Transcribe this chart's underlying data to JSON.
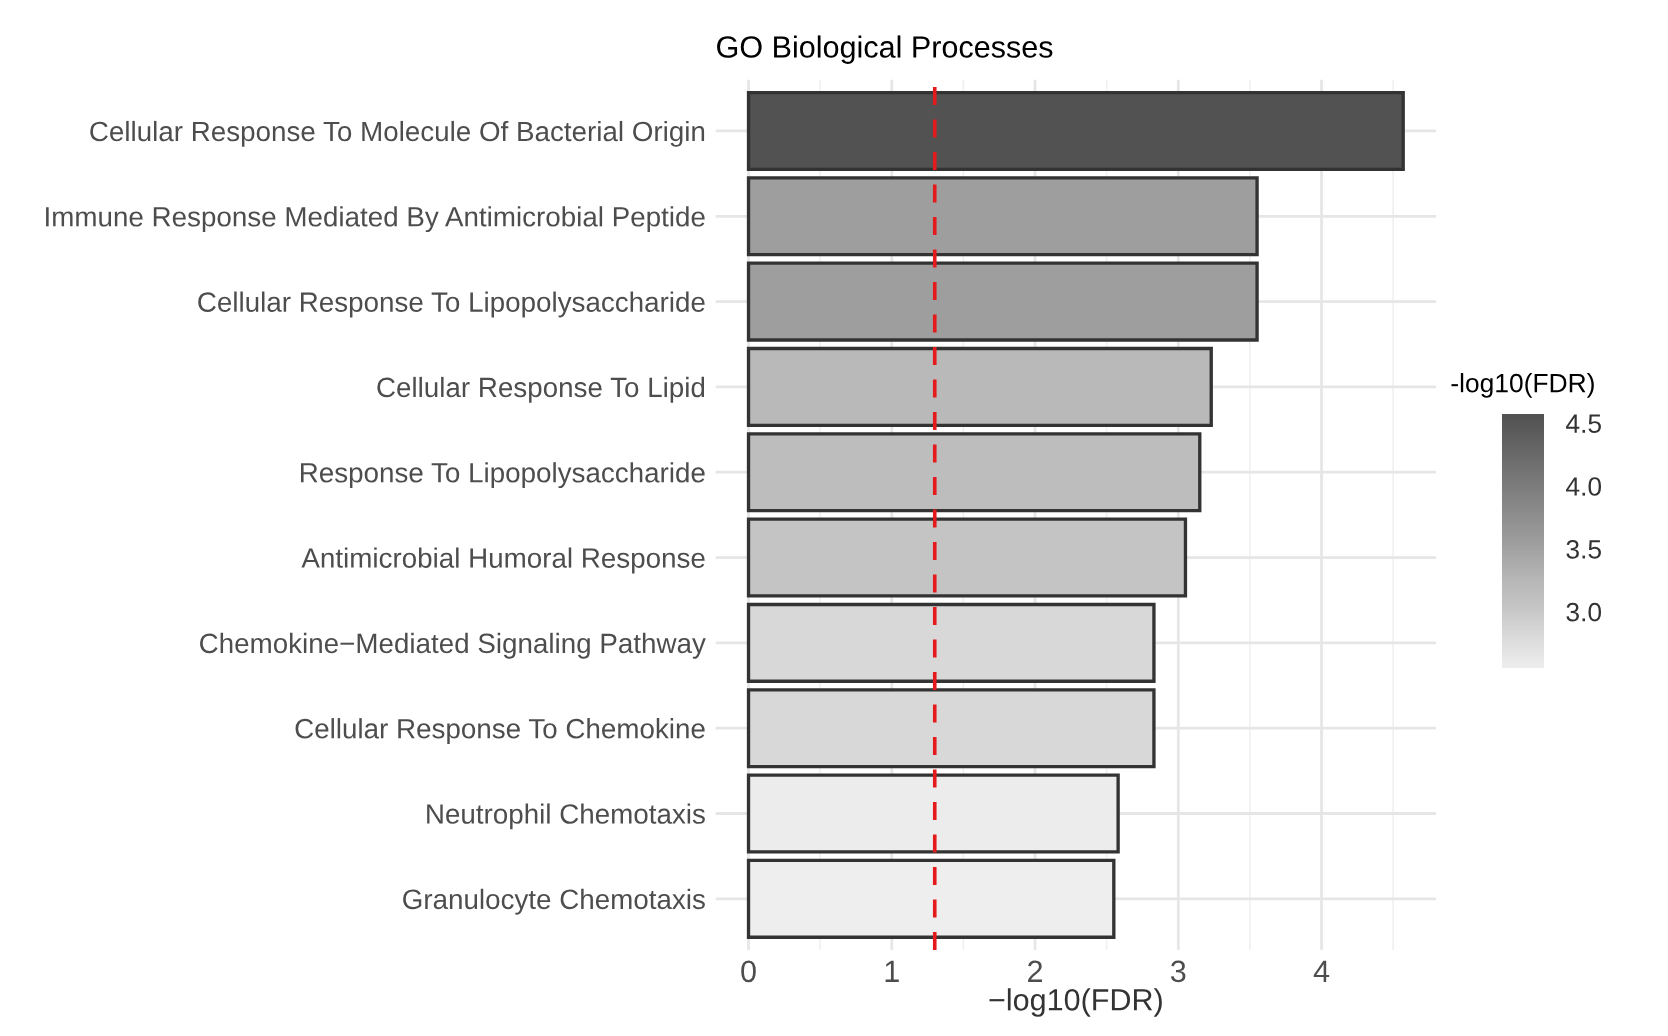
{
  "chart_data": {
    "type": "bar",
    "orientation": "horizontal",
    "title": "GO Biological Processes",
    "xlabel": "−log10(FDR)",
    "clabel": "-log10(FDR)",
    "categories": [
      "Cellular Response To Molecule Of Bacterial Origin",
      "Immune Response Mediated By Antimicrobial Peptide",
      "Cellular Response To Lipopolysaccharide",
      "Cellular Response To Lipid",
      "Response To Lipopolysaccharide",
      "Antimicrobial Humoral Response",
      "Chemokine−Mediated Signaling Pathway",
      "Cellular Response To Chemokine",
      "Neutrophil Chemotaxis",
      "Granulocyte Chemotaxis"
    ],
    "values": [
      4.57,
      3.55,
      3.55,
      3.23,
      3.15,
      3.05,
      2.83,
      2.83,
      2.58,
      2.55
    ],
    "colors": [
      "#525252",
      "#9e9e9e",
      "#9e9e9e",
      "#b9b9b9",
      "#bdbdbd",
      "#c4c4c4",
      "#d8d8d8",
      "#d8d8d8",
      "#ececec",
      "#eeeeee"
    ],
    "xlim": [
      -0.23,
      4.8
    ],
    "xticks": [
      0,
      1,
      2,
      3,
      4
    ],
    "clim": [
      2.55,
      4.57
    ],
    "cticks": [
      {
        "value": 3,
        "label": "3.0"
      },
      3.5,
      {
        "value": 4,
        "label": "4.0"
      },
      4.5
    ],
    "grid": true,
    "ref_lines": [
      {
        "axis": "x",
        "value": 1.3,
        "color": "#e41a1c",
        "line_style": "dashed"
      }
    ]
  }
}
